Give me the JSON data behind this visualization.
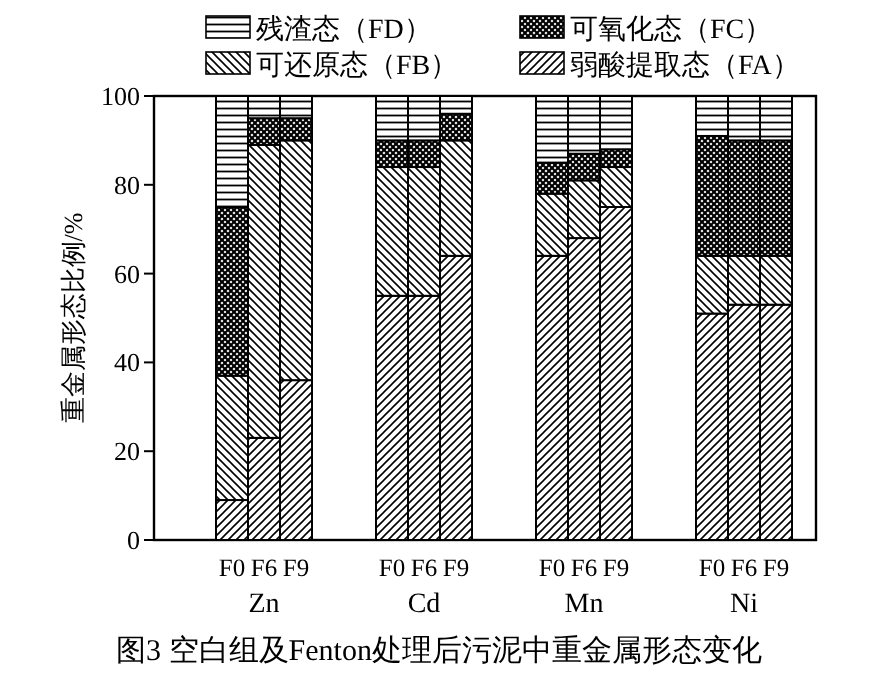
{
  "chart_data": [
    {
      "type": "bar",
      "stacked": true,
      "title": "图3 空白组及Fenton处理后污泥中重金属形态变化",
      "ylabel": "重金属形态比例/%",
      "xlabel": "Zn",
      "categories": [
        "F0",
        "F6",
        "F9"
      ],
      "series": [
        {
          "name": "弱酸提取态（FA）",
          "color": "#000000",
          "values": [
            9,
            23,
            36
          ]
        },
        {
          "name": "可还原态（FB）",
          "color": "#000000",
          "values": [
            28,
            66,
            54
          ]
        },
        {
          "name": "可氧化态（FC）",
          "color": "#000000",
          "values": [
            38,
            6,
            5
          ]
        },
        {
          "name": "残渣态（FD）",
          "color": "#000000",
          "values": [
            25,
            5,
            5
          ]
        }
      ],
      "ylim": [
        0,
        100
      ],
      "yticks": [
        0,
        20,
        40,
        60,
        80,
        100
      ],
      "legend": "top"
    },
    {
      "type": "bar",
      "stacked": true,
      "xlabel": "Cd",
      "categories": [
        "F0",
        "F6",
        "F9"
      ],
      "series": [
        {
          "color": "#000000",
          "values": [
            55,
            55,
            64
          ]
        },
        {
          "color": "#000000",
          "values": [
            29,
            29,
            26
          ]
        },
        {
          "color": "#000000",
          "values": [
            6,
            6,
            6
          ]
        },
        {
          "color": "#000000",
          "values": [
            10,
            10,
            4
          ]
        }
      ],
      "ylim": [
        0,
        100
      ],
      "yticks": [
        0,
        20,
        40,
        60,
        80,
        100
      ],
      "tick_labels": "x"
    },
    {
      "type": "bar",
      "stacked": true,
      "xlabel": "Mn",
      "categories": [
        "F0",
        "F6",
        "F9"
      ],
      "series": [
        {
          "color": "#000000",
          "values": [
            64,
            68,
            75
          ]
        },
        {
          "color": "#000000",
          "values": [
            14,
            13,
            9
          ]
        },
        {
          "color": "#000000",
          "values": [
            7,
            6,
            4
          ]
        },
        {
          "color": "#000000",
          "values": [
            15,
            13,
            12
          ]
        }
      ],
      "ylim": [
        0,
        100
      ],
      "yticks": [
        0,
        20,
        40,
        60,
        80,
        100
      ],
      "tick_labels": "x"
    },
    {
      "type": "bar",
      "stacked": true,
      "xlabel": "Ni",
      "categories": [
        "F0",
        "F6",
        "F9"
      ],
      "series": [
        {
          "color": "#000000",
          "values": [
            51,
            53,
            53
          ]
        },
        {
          "color": "#000000",
          "values": [
            13,
            11,
            11
          ]
        },
        {
          "color": "#000000",
          "values": [
            27,
            26,
            26
          ]
        },
        {
          "color": "#000000",
          "values": [
            9,
            10,
            10
          ]
        }
      ],
      "ylim": [
        0,
        100
      ],
      "yticks": [
        0,
        20,
        40,
        60,
        80,
        100
      ],
      "tick_labels": "x"
    }
  ]
}
